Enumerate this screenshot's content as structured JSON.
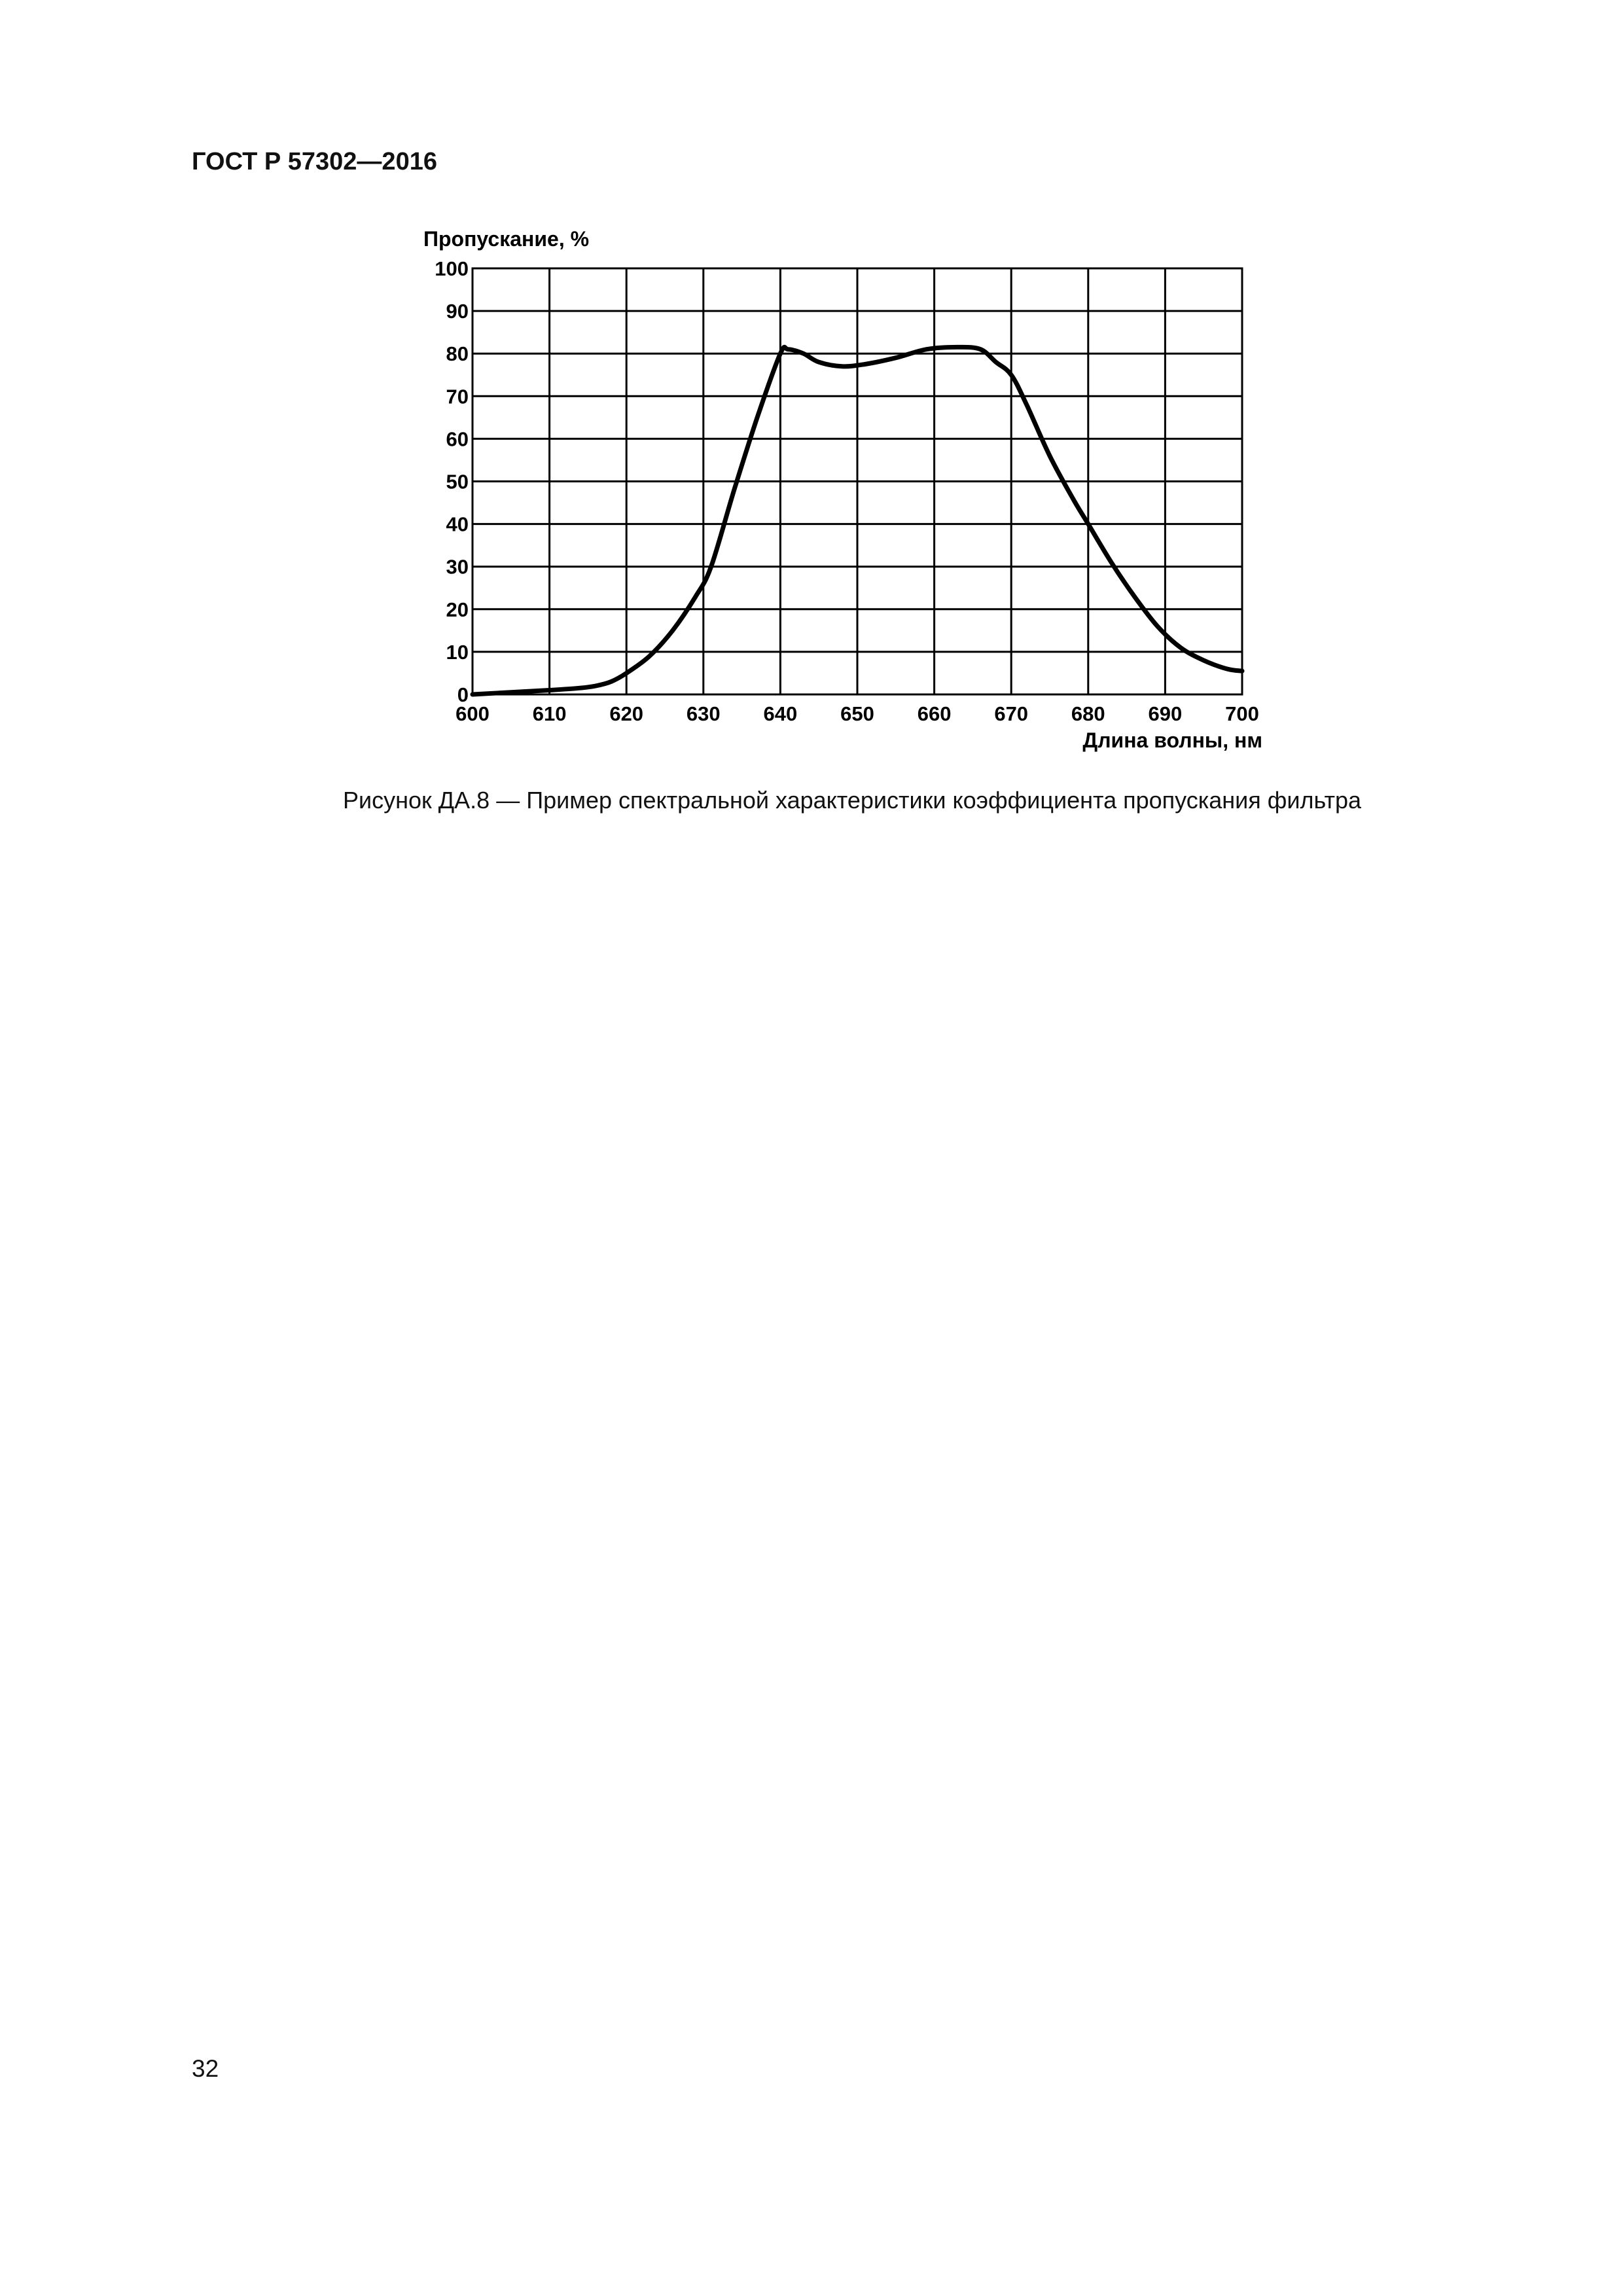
{
  "document": {
    "header": "ГОСТ Р 57302—2016",
    "caption": "Рисунок ДА.8 — Пример спектральной характеристики коэффициента пропускания фильтра",
    "page_number": "32"
  },
  "chart_data": {
    "type": "line",
    "title": "",
    "xlabel": "Длина волны, нм",
    "ylabel": "Пропускание, %",
    "xlim": [
      600,
      700
    ],
    "ylim": [
      0,
      100
    ],
    "grid": true,
    "x_ticks": [
      600,
      610,
      620,
      630,
      640,
      650,
      660,
      670,
      680,
      690,
      700
    ],
    "y_ticks": [
      0,
      10,
      20,
      30,
      40,
      50,
      60,
      70,
      80,
      90,
      100
    ],
    "series": [
      {
        "color": "#000000",
        "x": [
          600,
          605,
          610,
          614,
          616,
          618,
          620,
          623,
          626,
          629,
          631,
          634,
          637,
          640,
          641,
          643,
          645,
          648,
          651,
          655,
          659,
          663,
          666,
          668,
          670,
          672,
          675,
          678,
          680,
          683,
          686,
          689,
          692,
          695,
          698,
          700
        ],
        "y": [
          0,
          0.5,
          1,
          1.5,
          2,
          3,
          5,
          9,
          15,
          23,
          30,
          48,
          65,
          80,
          81,
          80,
          78,
          77,
          77.5,
          79,
          81,
          81.5,
          81,
          78,
          75,
          68,
          56,
          46,
          40,
          31,
          23,
          16,
          11,
          8,
          6,
          5.5
        ]
      }
    ]
  }
}
